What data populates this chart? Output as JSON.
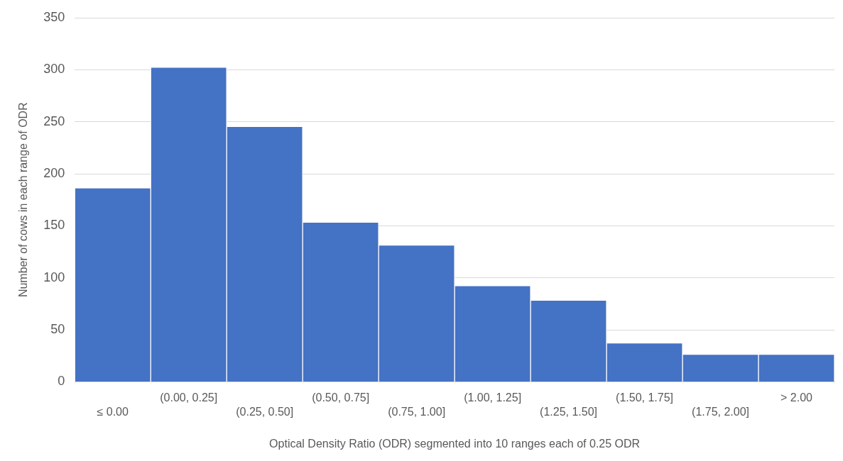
{
  "chart_data": {
    "type": "bar",
    "categories": [
      "≤ 0.00",
      "(0.00, 0.25]",
      "(0.25, 0.50]",
      "(0.50, 0.75]",
      "(0.75, 1.00]",
      "(1.00, 1.25]",
      "(1.25, 1.50]",
      "(1.50, 1.75]",
      "(1.75, 2.00]",
      "> 2.00"
    ],
    "values": [
      186,
      302,
      245,
      153,
      131,
      92,
      78,
      37,
      26,
      26
    ],
    "color": "#4472c4",
    "xlabel": "Optical Density Ratio (ODR) segmented into 10 ranges each of 0.25 ODR",
    "ylabel": "Number of cows in each range of ODR",
    "ylim": [
      0,
      350
    ],
    "yticks": [
      0,
      50,
      100,
      150,
      200,
      250,
      300,
      350
    ],
    "grid": "y"
  }
}
